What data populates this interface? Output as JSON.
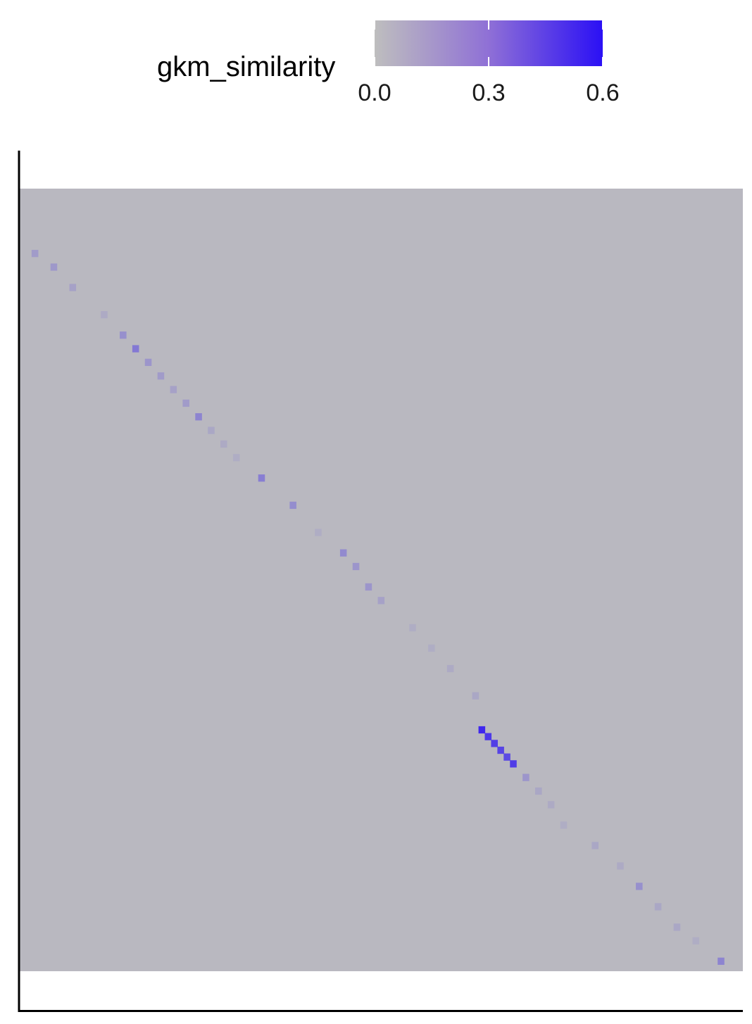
{
  "chart_data": {
    "type": "heatmap",
    "title": "",
    "xlabel": "",
    "ylabel": "",
    "legend": {
      "title": "gkm_similarity",
      "position": "top",
      "min": 0.0,
      "max": 0.6,
      "ticks": [
        {
          "value": 0.0,
          "label": "0.0"
        },
        {
          "value": 0.3,
          "label": "0.3"
        },
        {
          "value": 0.6,
          "label": "0.6"
        }
      ],
      "low_color": "#bebebe",
      "high_color": "#2b10f5"
    },
    "background_value": 0.02,
    "grid": false,
    "n_rows": 115,
    "n_cols": 115,
    "diagonal_cells": [
      {
        "row": 9,
        "col": 2,
        "value": 0.12
      },
      {
        "row": 11,
        "col": 5,
        "value": 0.13
      },
      {
        "row": 14,
        "col": 8,
        "value": 0.1
      },
      {
        "row": 18,
        "col": 13,
        "value": 0.07
      },
      {
        "row": 21,
        "col": 16,
        "value": 0.16
      },
      {
        "row": 23,
        "col": 18,
        "value": 0.24
      },
      {
        "row": 25,
        "col": 20,
        "value": 0.14
      },
      {
        "row": 27,
        "col": 22,
        "value": 0.12
      },
      {
        "row": 29,
        "col": 24,
        "value": 0.1
      },
      {
        "row": 31,
        "col": 26,
        "value": 0.12
      },
      {
        "row": 33,
        "col": 28,
        "value": 0.2
      },
      {
        "row": 35,
        "col": 30,
        "value": 0.08
      },
      {
        "row": 37,
        "col": 32,
        "value": 0.07
      },
      {
        "row": 39,
        "col": 34,
        "value": 0.06
      },
      {
        "row": 42,
        "col": 38,
        "value": 0.22
      },
      {
        "row": 46,
        "col": 43,
        "value": 0.17
      },
      {
        "row": 50,
        "col": 47,
        "value": 0.06
      },
      {
        "row": 53,
        "col": 51,
        "value": 0.18
      },
      {
        "row": 55,
        "col": 53,
        "value": 0.14
      },
      {
        "row": 58,
        "col": 55,
        "value": 0.14
      },
      {
        "row": 60,
        "col": 57,
        "value": 0.1
      },
      {
        "row": 64,
        "col": 62,
        "value": 0.06
      },
      {
        "row": 67,
        "col": 65,
        "value": 0.06
      },
      {
        "row": 70,
        "col": 68,
        "value": 0.07
      },
      {
        "row": 74,
        "col": 72,
        "value": 0.08
      },
      {
        "row": 79,
        "col": 73,
        "value": 0.52
      },
      {
        "row": 80,
        "col": 74,
        "value": 0.46
      },
      {
        "row": 81,
        "col": 75,
        "value": 0.44
      },
      {
        "row": 82,
        "col": 76,
        "value": 0.42
      },
      {
        "row": 83,
        "col": 77,
        "value": 0.4
      },
      {
        "row": 84,
        "col": 78,
        "value": 0.45
      },
      {
        "row": 86,
        "col": 80,
        "value": 0.14
      },
      {
        "row": 88,
        "col": 82,
        "value": 0.08
      },
      {
        "row": 90,
        "col": 84,
        "value": 0.07
      },
      {
        "row": 93,
        "col": 86,
        "value": 0.06
      },
      {
        "row": 96,
        "col": 91,
        "value": 0.08
      },
      {
        "row": 99,
        "col": 95,
        "value": 0.07
      },
      {
        "row": 102,
        "col": 98,
        "value": 0.16
      },
      {
        "row": 105,
        "col": 101,
        "value": 0.08
      },
      {
        "row": 108,
        "col": 104,
        "value": 0.08
      },
      {
        "row": 110,
        "col": 107,
        "value": 0.06
      },
      {
        "row": 113,
        "col": 111,
        "value": 0.2
      }
    ]
  }
}
